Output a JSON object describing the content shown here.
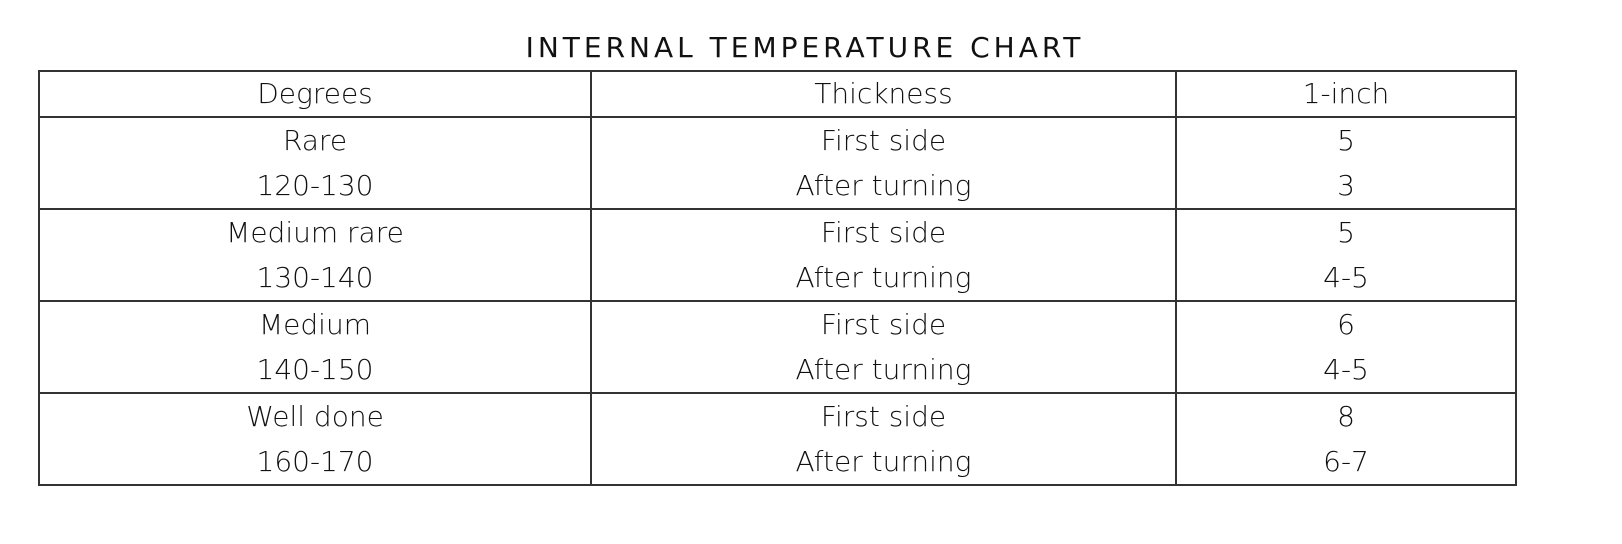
{
  "title": "INTERNAL TEMPERATURE CHART",
  "table": {
    "header": [
      "Degrees",
      "Thickness",
      "1-inch"
    ],
    "rows": [
      [
        [
          "Rare",
          "120-130"
        ],
        [
          "First side",
          "After turning"
        ],
        [
          "5",
          "3"
        ]
      ],
      [
        [
          "Medium rare",
          "130-140"
        ],
        [
          "First side",
          "After turning"
        ],
        [
          "5",
          "4-5"
        ]
      ],
      [
        [
          "Medium",
          "140-150"
        ],
        [
          "First side",
          "After turning"
        ],
        [
          "6",
          "4-5"
        ]
      ],
      [
        [
          "Well done",
          "160-170"
        ],
        [
          "First side",
          "After turning"
        ],
        [
          "8",
          "6-7"
        ]
      ]
    ]
  }
}
